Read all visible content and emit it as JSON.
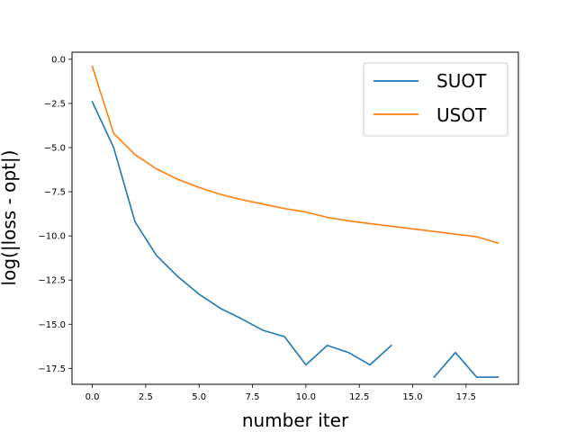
{
  "chart_data": {
    "type": "line",
    "title": "",
    "xlabel": "number iter",
    "ylabel": "log(|loss - opt|)",
    "xlim": [
      -0.95,
      19.95
    ],
    "ylim": [
      -18.4,
      0.4
    ],
    "xticks": [
      0.0,
      2.5,
      5.0,
      7.5,
      10.0,
      12.5,
      15.0,
      17.5
    ],
    "xtick_labels": [
      "0.0",
      "2.5",
      "5.0",
      "7.5",
      "10.0",
      "12.5",
      "15.0",
      "17.5"
    ],
    "yticks": [
      0.0,
      -2.5,
      -5.0,
      -7.5,
      -10.0,
      -12.5,
      -15.0,
      -17.5
    ],
    "ytick_labels": [
      "0.0",
      "−2.5",
      "−5.0",
      "−7.5",
      "−10.0",
      "−12.5",
      "−15.0",
      "−17.5"
    ],
    "grid": false,
    "legend_position": "top-right",
    "series": [
      {
        "name": "SUOT",
        "color": "#1f77b4",
        "x": [
          0,
          1,
          2,
          3,
          4,
          5,
          6,
          7,
          8,
          9,
          10,
          11,
          12,
          13,
          14,
          15,
          16,
          17,
          18,
          19
        ],
        "y": [
          -2.4,
          -5.0,
          -9.2,
          -11.1,
          -12.3,
          -13.3,
          -14.1,
          -14.7,
          -15.35,
          -15.7,
          -17.3,
          -16.2,
          -16.6,
          -17.3,
          -16.2,
          null,
          -18.0,
          -16.6,
          -18.0,
          -18.0
        ]
      },
      {
        "name": "USOT",
        "color": "#ff7f0e",
        "x": [
          0,
          1,
          2,
          3,
          4,
          5,
          6,
          7,
          8,
          9,
          10,
          11,
          12,
          13,
          14,
          15,
          16,
          17,
          18,
          19
        ],
        "y": [
          -0.4,
          -4.2,
          -5.4,
          -6.2,
          -6.8,
          -7.25,
          -7.65,
          -7.95,
          -8.2,
          -8.45,
          -8.65,
          -8.95,
          -9.15,
          -9.3,
          -9.45,
          -9.6,
          -9.75,
          -9.9,
          -10.05,
          -10.4
        ]
      }
    ]
  }
}
